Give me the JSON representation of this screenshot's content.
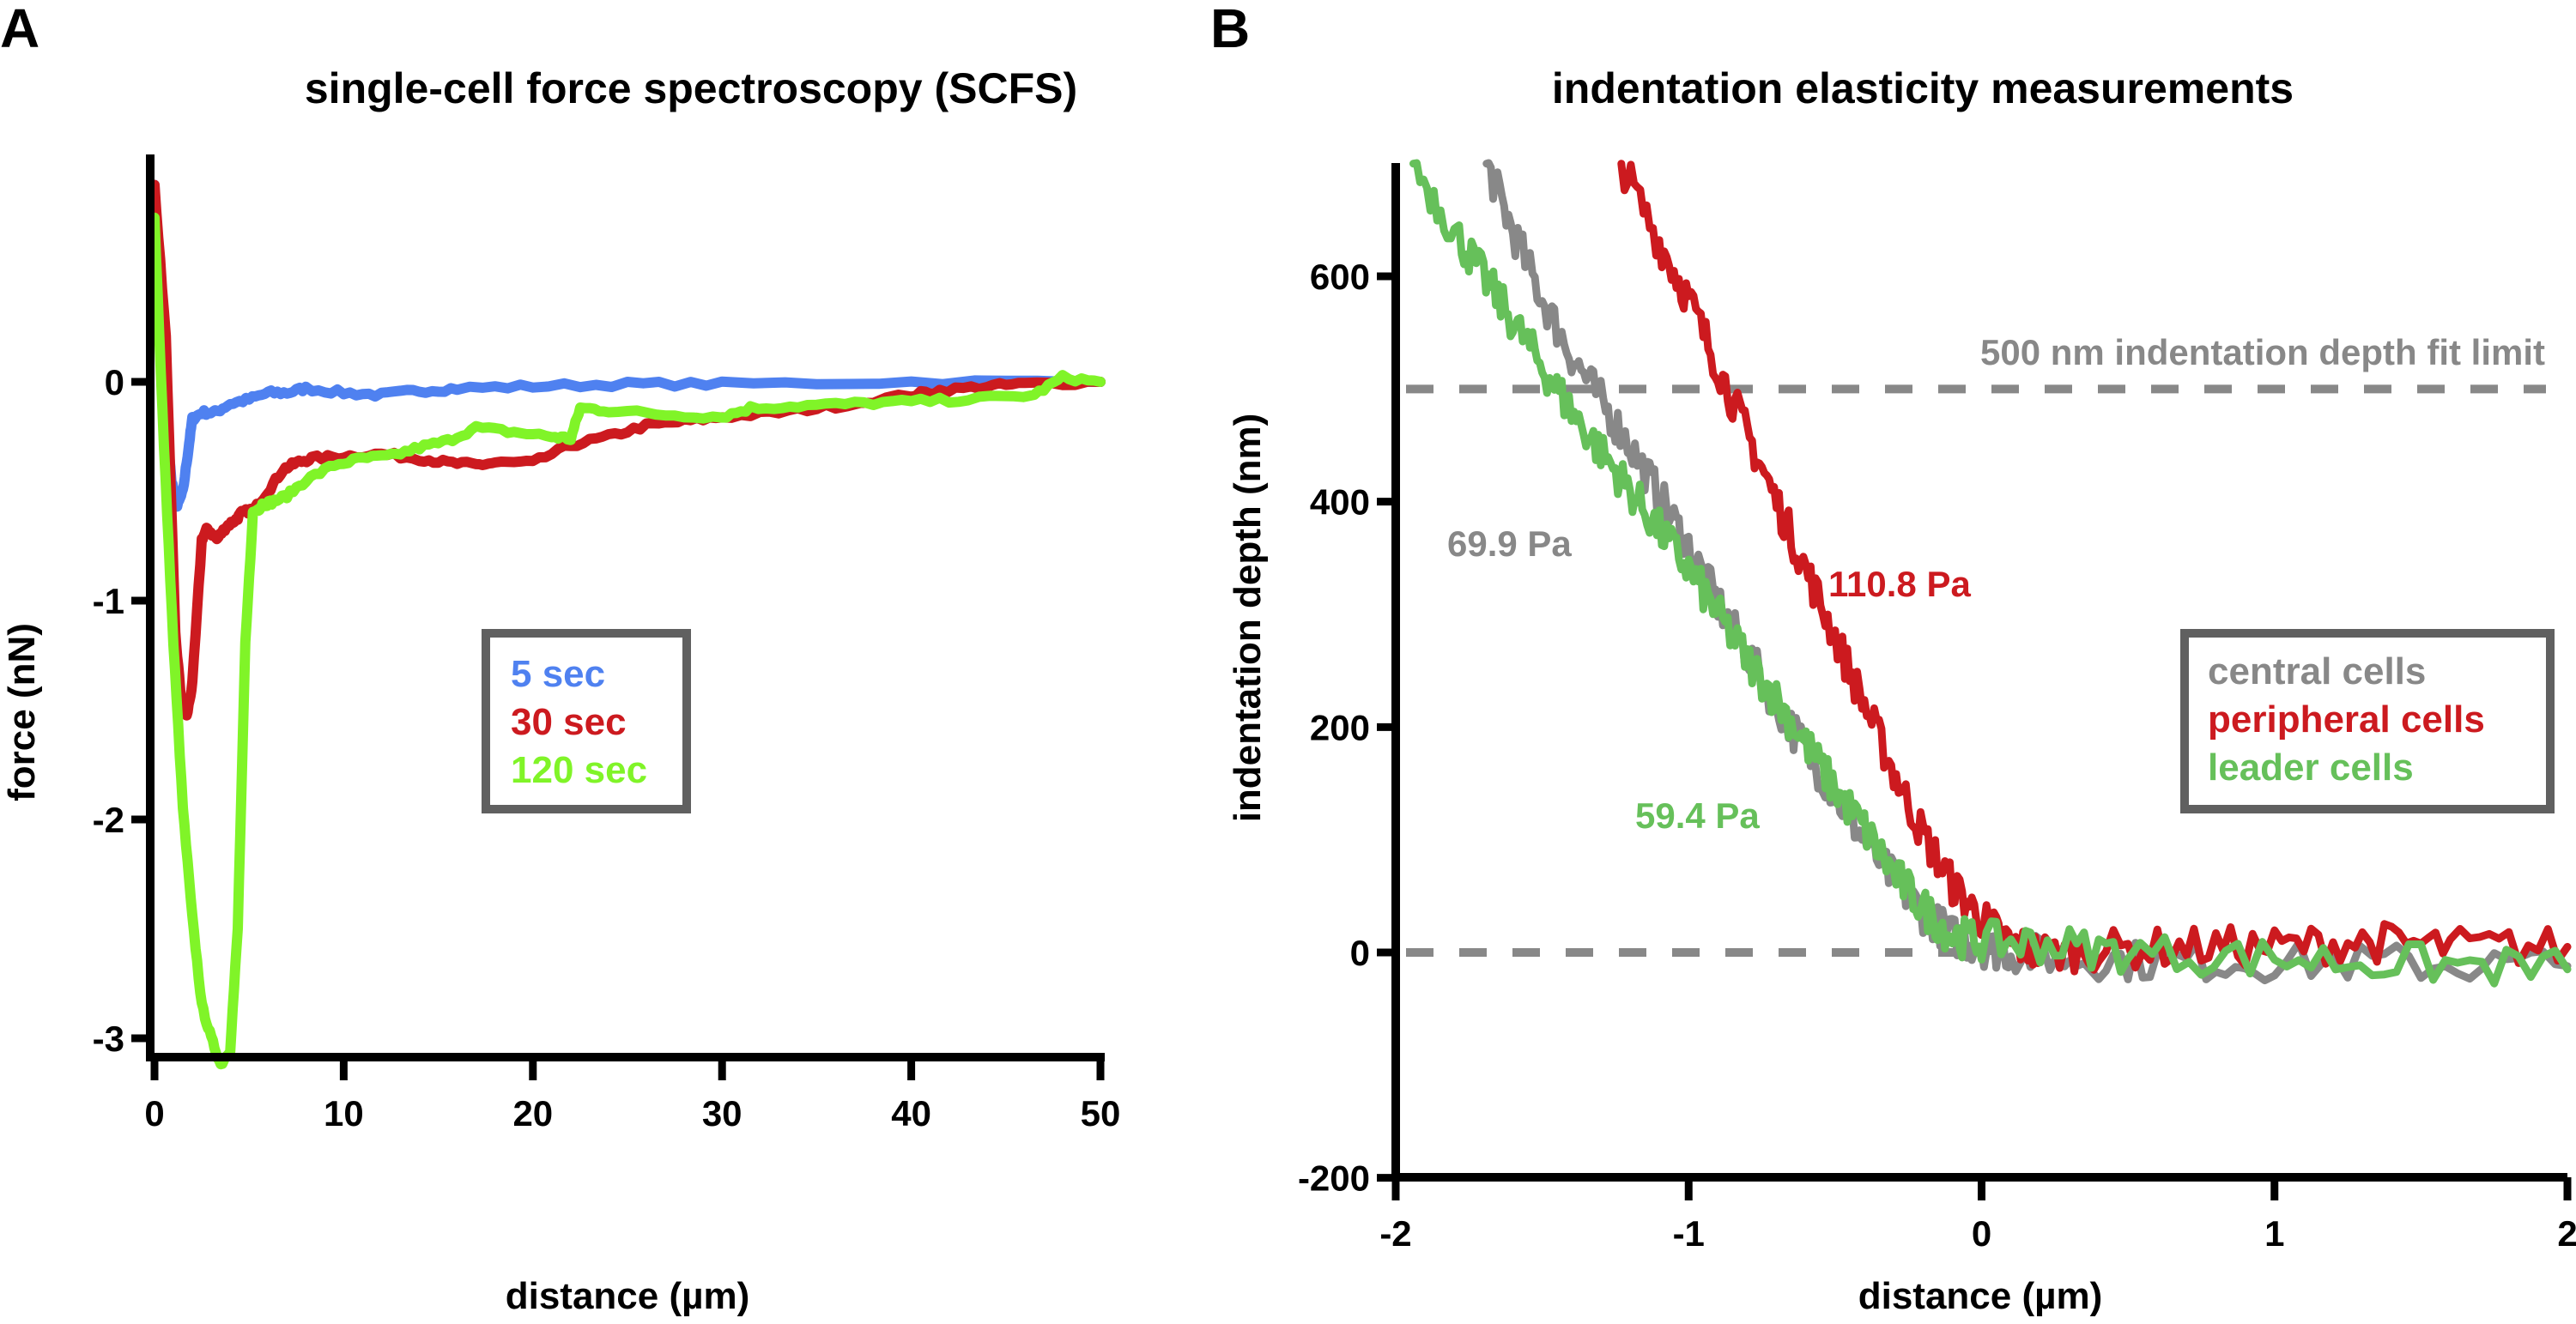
{
  "figure": {
    "panels": [
      {
        "letter": "A",
        "title": "single-cell force spectroscopy (SCFS)"
      },
      {
        "letter": "B",
        "title": "indentation elasticity measurements"
      }
    ]
  },
  "chart_data": [
    {
      "type": "line",
      "panel": "A",
      "title": "single-cell force spectroscopy (SCFS)",
      "xlabel": "distance (µm)",
      "ylabel": "force (nN)",
      "xlim": [
        -0.5,
        50
      ],
      "ylim": [
        -3.2,
        0.9
      ],
      "xticks": [
        0,
        10,
        20,
        30,
        40,
        50
      ],
      "xtick_labels": [
        "0",
        "10",
        "20",
        "30",
        "40",
        "50"
      ],
      "yticks": [
        0,
        -1,
        -2,
        -3
      ],
      "ytick_labels": [
        "0",
        "-1",
        "-2",
        "-3"
      ],
      "grid": false,
      "legend": {
        "placement": "center",
        "entries": [
          "5 sec",
          "30 sec",
          "120 sec"
        ]
      },
      "series": [
        {
          "name": "5 sec",
          "color": "#4f81f0",
          "x": [
            0,
            0.2,
            0.5,
            0.9,
            1.2,
            1.5,
            1.8,
            2.0,
            2.5,
            3.2,
            4.0,
            5.0,
            6.0,
            7.0,
            8.0,
            10.0,
            12.0,
            14.0,
            16.0,
            20.0,
            25.0,
            30.0,
            40.0,
            50.0
          ],
          "y": [
            0.9,
            0.5,
            -0.1,
            -0.45,
            -0.57,
            -0.5,
            -0.3,
            -0.17,
            -0.14,
            -0.14,
            -0.1,
            -0.08,
            -0.05,
            -0.05,
            -0.03,
            -0.05,
            -0.06,
            -0.04,
            -0.03,
            -0.02,
            -0.01,
            -0.01,
            0.0,
            0.0
          ]
        },
        {
          "name": "30 sec",
          "color": "#cc1a1f",
          "x": [
            0,
            0.6,
            1.1,
            1.4,
            1.7,
            2.0,
            2.5,
            2.8,
            3.3,
            3.8,
            4.3,
            4.6,
            5.3,
            6.0,
            6.8,
            7.5,
            8.3,
            10.0,
            12.0,
            14.0,
            15.5,
            17.0,
            18.0,
            20.0,
            22.0,
            24.0,
            26.0,
            28.0,
            30.0,
            33.0,
            36.0,
            40.0,
            41.5,
            44.0,
            46.0,
            50.0
          ],
          "y": [
            0.9,
            0.2,
            -1.15,
            -1.45,
            -1.53,
            -1.38,
            -0.72,
            -0.67,
            -0.72,
            -0.66,
            -0.63,
            -0.6,
            -0.58,
            -0.5,
            -0.4,
            -0.37,
            -0.35,
            -0.34,
            -0.33,
            -0.35,
            -0.37,
            -0.38,
            -0.37,
            -0.37,
            -0.29,
            -0.25,
            -0.2,
            -0.18,
            -0.16,
            -0.14,
            -0.11,
            -0.06,
            -0.04,
            -0.02,
            -0.01,
            0.0
          ]
        },
        {
          "name": "120 sec",
          "color": "#80f428",
          "x": [
            0,
            0.5,
            1.0,
            1.5,
            2.0,
            2.5,
            3.0,
            3.5,
            4.0,
            4.4,
            4.8,
            5.2,
            5.5,
            5.7,
            6.2,
            7.0,
            8.0,
            9.5,
            11.0,
            12.5,
            14.0,
            15.5,
            17.0,
            19.0,
            21.0,
            22.0,
            22.5,
            24.0,
            27.0,
            30.0,
            31.5,
            34.0,
            37.0,
            40.0,
            43.0,
            46.5,
            48.0,
            50.0
          ],
          "y": [
            0.75,
            -0.3,
            -1.2,
            -1.95,
            -2.45,
            -2.85,
            -3.0,
            -3.12,
            -3.05,
            -2.5,
            -1.2,
            -0.6,
            -0.58,
            -0.56,
            -0.55,
            -0.52,
            -0.45,
            -0.38,
            -0.35,
            -0.34,
            -0.3,
            -0.27,
            -0.21,
            -0.23,
            -0.25,
            -0.26,
            -0.12,
            -0.13,
            -0.15,
            -0.16,
            -0.12,
            -0.11,
            -0.1,
            -0.09,
            -0.08,
            -0.06,
            0.02,
            0.0
          ]
        }
      ]
    },
    {
      "type": "line",
      "panel": "B",
      "title": "indentation elasticity measurements",
      "xlabel": "distance (µm)",
      "ylabel": "indentation depth (nm)",
      "xlim": [
        -2,
        2
      ],
      "ylim": [
        -200,
        700
      ],
      "xticks": [
        -2,
        -1,
        0,
        1,
        2
      ],
      "xtick_labels": [
        "-2",
        "-1",
        "0",
        "1",
        "2"
      ],
      "yticks": [
        600,
        400,
        200,
        0,
        -200
      ],
      "ytick_labels": [
        "600",
        "400",
        "200",
        "0",
        "-200"
      ],
      "grid": false,
      "legend": {
        "placement": "right",
        "entries": [
          "central cells",
          "peripheral cells",
          "leader cells"
        ]
      },
      "reference_lines": [
        {
          "y": 500,
          "label": "500 nm indentation depth fit limit",
          "style": "dashed",
          "color": "#888888"
        },
        {
          "y": 0,
          "label": "",
          "style": "dashed",
          "color": "#888888"
        }
      ],
      "annotations": [
        {
          "text": "69.9 Pa",
          "series": "central cells",
          "color": "#888888"
        },
        {
          "text": "110.8 Pa",
          "series": "peripheral cells",
          "color": "#cc1a1f"
        },
        {
          "text": "59.4 Pa",
          "series": "leader cells",
          "color": "#66c05a"
        }
      ],
      "series": [
        {
          "name": "central cells",
          "color": "#888888",
          "elastic_modulus": "69.9 Pa",
          "x": [
            -1.69,
            -1.6,
            -1.5,
            -1.4,
            -1.3,
            -1.2,
            -1.1,
            -1.0,
            -0.9,
            -0.8,
            -0.7,
            -0.6,
            -0.5,
            -0.4,
            -0.3,
            -0.2,
            -0.1,
            0.0,
            0.1,
            0.3,
            0.6,
            1.0,
            1.5,
            2.0
          ],
          "y": [
            700,
            640,
            580,
            530,
            490,
            450,
            405,
            360,
            310,
            265,
            220,
            180,
            140,
            100,
            65,
            35,
            15,
            5,
            0,
            -5,
            -8,
            -8,
            -10,
            -12
          ]
        },
        {
          "name": "peripheral cells",
          "color": "#cc1a1f",
          "elastic_modulus": "110.8 Pa",
          "x": [
            -1.23,
            -1.1,
            -1.0,
            -0.9,
            -0.8,
            -0.7,
            -0.6,
            -0.5,
            -0.4,
            -0.3,
            -0.2,
            -0.1,
            0.0,
            0.1,
            0.2,
            0.4,
            0.7,
            1.0,
            1.3,
            1.6,
            2.0
          ],
          "y": [
            700,
            630,
            580,
            520,
            460,
            400,
            340,
            280,
            220,
            160,
            105,
            60,
            30,
            8,
            0,
            2,
            5,
            5,
            10,
            5,
            5
          ]
        },
        {
          "name": "leader cells",
          "color": "#66c05a",
          "elastic_modulus": "59.4 Pa",
          "x": [
            -1.94,
            -1.8,
            -1.7,
            -1.6,
            -1.5,
            -1.4,
            -1.3,
            -1.2,
            -1.1,
            -1.0,
            -0.9,
            -0.8,
            -0.7,
            -0.6,
            -0.5,
            -0.4,
            -0.3,
            -0.2,
            -0.1,
            0.0,
            0.2,
            0.5,
            1.0,
            1.5,
            2.0
          ],
          "y": [
            700,
            640,
            600,
            560,
            520,
            480,
            445,
            410,
            375,
            340,
            300,
            260,
            225,
            185,
            145,
            110,
            70,
            40,
            15,
            10,
            8,
            0,
            -5,
            -10,
            -15
          ]
        }
      ]
    }
  ]
}
